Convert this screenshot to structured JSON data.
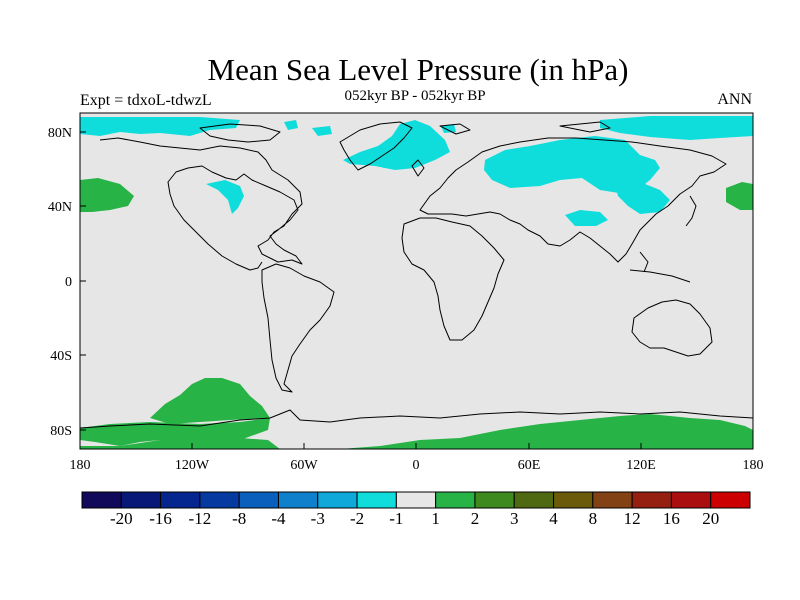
{
  "header": {
    "title": "Mean Sea Level Pressure (in hPa)",
    "subtitle": "052kyr BP - 052kyr BP",
    "experiment": "Expt = tdxoL-tdwzL",
    "season": "ANN"
  },
  "map": {
    "projection": "cylindrical equidistant",
    "lon_range": [
      -180,
      180
    ],
    "lat_range": [
      -90,
      90
    ],
    "background_color": "#e6e6e6",
    "coastline_color": "#000000",
    "lon_tick_labels": [
      "180",
      "120W",
      "60W",
      "0",
      "60E",
      "120E",
      "180"
    ],
    "lat_tick_labels": [
      "80N",
      "40N",
      "0",
      "40S",
      "80S"
    ]
  },
  "colorbar": {
    "labels": [
      "-20",
      "-16",
      "-12",
      "-8",
      "-4",
      "-3",
      "-2",
      "-1",
      "1",
      "2",
      "3",
      "4",
      "8",
      "12",
      "16",
      "20"
    ],
    "colors": [
      "#110a5a",
      "#081878",
      "#06268f",
      "#053ba0",
      "#0a5fbc",
      "#0f81cc",
      "#0fa8d8",
      "#0fdddc",
      "#e6e6e6",
      "#28b347",
      "#3e8a1e",
      "#4f6812",
      "#6a5a0a",
      "#834214",
      "#951f10",
      "#aa0e0e",
      "#cc0000"
    ]
  }
}
